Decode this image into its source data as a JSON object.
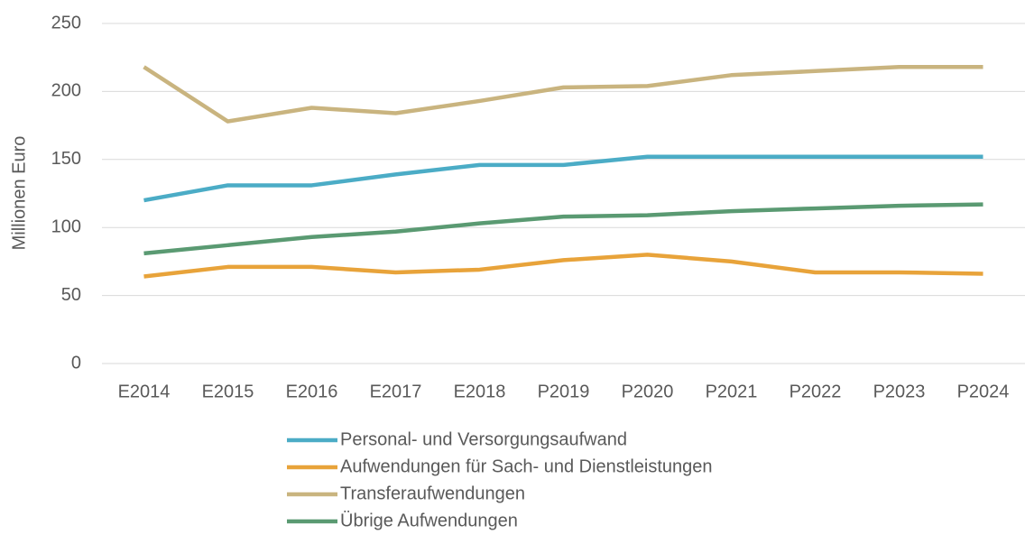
{
  "chart_data": {
    "type": "line",
    "y_label": "Millionen Euro",
    "categories": [
      "E2014",
      "E2015",
      "E2016",
      "E2017",
      "E2018",
      "P2019",
      "P2020",
      "P2021",
      "P2022",
      "P2023",
      "P2024"
    ],
    "series": [
      {
        "name": "Personal- und Versorgungsaufwand",
        "color": "#4bacc6",
        "values": [
          120,
          131,
          131,
          139,
          146,
          146,
          152,
          152,
          152,
          152,
          152
        ]
      },
      {
        "name": "Aufwendungen für Sach- und Dienstleistungen",
        "color": "#e8a33a",
        "values": [
          64,
          71,
          71,
          67,
          69,
          76,
          80,
          75,
          67,
          67,
          66
        ]
      },
      {
        "name": "Transferaufwendungen",
        "color": "#c9b47f",
        "values": [
          218,
          178,
          188,
          184,
          193,
          203,
          204,
          212,
          215,
          218,
          218
        ]
      },
      {
        "name": "Übrige Aufwendungen",
        "color": "#5a9a72",
        "values": [
          81,
          87,
          93,
          97,
          103,
          108,
          109,
          112,
          114,
          116,
          117
        ]
      }
    ],
    "ylim": [
      0,
      250
    ],
    "yticks": [
      0,
      50,
      100,
      150,
      200,
      250
    ],
    "grid": true
  }
}
